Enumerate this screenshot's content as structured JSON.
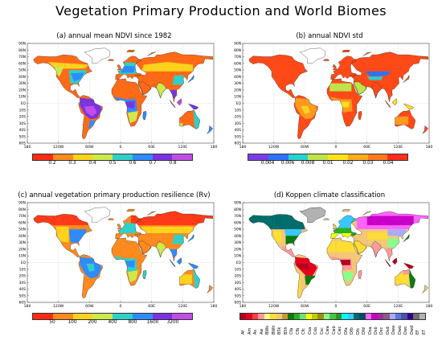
{
  "title": "Vegetation Primary Production and World Biomes",
  "map_axes": {
    "lat_labels": [
      "90N",
      "80N",
      "70N",
      "60N",
      "50N",
      "40N",
      "30N",
      "20N",
      "10N",
      "EQ",
      "10S",
      "20S",
      "30S",
      "40S",
      "50S",
      "60S"
    ],
    "lon_labels": [
      "180",
      "120W",
      "60W",
      "0",
      "60E",
      "120E",
      "180"
    ]
  },
  "panels": [
    {
      "title": "(a) annual mean NDVI since 1982",
      "colorbar": {
        "colors": [
          "#ff2a14",
          "#ff8a1e",
          "#ffd21c",
          "#cde94b",
          "#2fd0c8",
          "#2f8bff",
          "#7a33e0",
          "#c24de8"
        ],
        "ticks": [
          "0.2",
          "0.3",
          "0.4",
          "0.5",
          "0.6",
          "0.7",
          "0.8"
        ]
      }
    },
    {
      "title": "(b) annual NDVI std",
      "colorbar": {
        "colors": [
          "#7b3de8",
          "#2f72ff",
          "#27d2cf",
          "#bde54a",
          "#ffe31a",
          "#ffad1f",
          "#ff7a1e",
          "#ff2d19"
        ],
        "ticks": [
          "0.004",
          "0.006",
          "0.008",
          "0.01",
          "0.02",
          "0.03",
          "0.04"
        ]
      }
    },
    {
      "title": "(c) annual vegetation primary production resilience (Rv)",
      "colorbar": {
        "colors": [
          "#ff2a14",
          "#ff8a1e",
          "#ffd21c",
          "#cde94b",
          "#2fd0c8",
          "#2f8bff",
          "#7a33e0",
          "#c24de8"
        ],
        "ticks": [
          "50",
          "100",
          "200",
          "400",
          "800",
          "1600",
          "3200"
        ]
      }
    },
    {
      "title": "(d) Koppen climate classification",
      "koppen": {
        "classes": [
          "Af",
          "Am",
          "As",
          "Aw",
          "BWk",
          "BWh",
          "BSk",
          "BSh",
          "Cfa",
          "Cfb",
          "Cfc",
          "Csa",
          "Csb",
          "Csc",
          "Cwa",
          "Cwb",
          "Cwc",
          "Dfa",
          "Dfb",
          "Dfc",
          "Dfd",
          "Dsa",
          "Dsb",
          "Dsc",
          "Dsd",
          "Dwa",
          "Dwb",
          "Dwc",
          "Dwd",
          "EF",
          "ET"
        ],
        "colors": [
          "#b3001b",
          "#e6001e",
          "#ff3d3d",
          "#ff9a9a",
          "#ffff88",
          "#ffdd33",
          "#f3c778",
          "#c99a37",
          "#0d7a0d",
          "#25b325",
          "#73e073",
          "#ffff00",
          "#c8c800",
          "#969600",
          "#8bff8b",
          "#44c844",
          "#2c962c",
          "#00ffff",
          "#38c8ff",
          "#006d6d",
          "#004a6b",
          "#ff66ff",
          "#c800c8",
          "#963296",
          "#8a5a8a",
          "#aaaaff",
          "#5a78dc",
          "#4b50b4",
          "#32008c",
          "#6e6e6e",
          "#b2b2b2"
        ]
      }
    }
  ]
}
